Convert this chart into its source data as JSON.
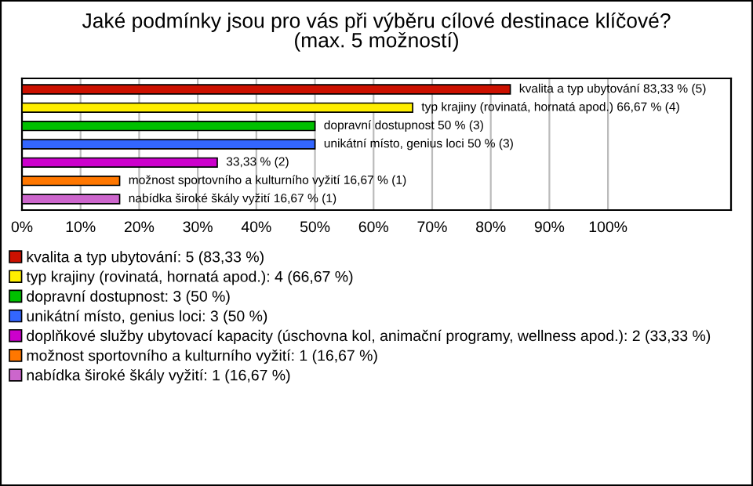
{
  "chart_data": {
    "type": "bar",
    "orientation": "horizontal",
    "title": "Jaké podmínky jsou pro vás při výběru cílové destinace klíčové?\n(max. 5 možností)",
    "categories": [
      null,
      null,
      null,
      null,
      null,
      null,
      null
    ],
    "series": [
      {
        "name": "kvalita a typ ubytování: 5 (83,33 %)",
        "color": "#cc1100",
        "values": [
          83.33,
          null,
          null,
          null,
          null,
          null,
          null
        ],
        "value_labels": [
          "kvalita a typ ubytování 83,33 % (5)",
          null,
          null,
          null,
          null,
          null,
          null
        ]
      },
      {
        "name": "typ krajiny (rovinatá, hornatá apod.): 4 (66,67 %)",
        "color": "#ffee00",
        "values": [
          null,
          66.67,
          null,
          null,
          null,
          null,
          null
        ],
        "value_labels": [
          null,
          "typ krajiny (rovinatá, hornatá apod.) 66,67 % (4)",
          null,
          null,
          null,
          null,
          null
        ]
      },
      {
        "name": "dopravní dostupnost: 3 (50 %)",
        "color": "#00c000",
        "values": [
          null,
          null,
          50,
          null,
          null,
          null,
          null
        ],
        "value_labels": [
          null,
          null,
          "dopravní dostupnost 50 % (3)",
          null,
          null,
          null,
          null
        ]
      },
      {
        "name": "unikátní místo, genius loci: 3 (50 %)",
        "color": "#3366ff",
        "values": [
          null,
          null,
          null,
          50,
          null,
          null,
          null
        ],
        "value_labels": [
          null,
          null,
          null,
          "unikátní místo, genius loci 50 % (3)",
          null,
          null,
          null
        ]
      },
      {
        "name": "doplňkové služby ubytovací kapacity (úschovna kol, animační programy, wellness apod.): 2 (33,33 %)",
        "color": "#cc00cc",
        "values": [
          null,
          null,
          null,
          null,
          33.33,
          null,
          null
        ],
        "value_labels": [
          null,
          null,
          null,
          null,
          "33,33 % (2)",
          null,
          null
        ]
      },
      {
        "name": "možnost sportovního a kulturního vyžití: 1 (16,67 %)",
        "color": "#ff7700",
        "values": [
          null,
          null,
          null,
          null,
          null,
          16.67,
          null
        ],
        "value_labels": [
          null,
          null,
          null,
          null,
          null,
          "možnost sportovního a kulturního vyžití 16,67 % (1)",
          null
        ]
      },
      {
        "name": "nabídka široké škály vyžití: 1 (16,67 %)",
        "color": "#cc66cc",
        "values": [
          null,
          null,
          null,
          null,
          null,
          null,
          16.67
        ],
        "value_labels": [
          null,
          null,
          null,
          null,
          null,
          null,
          "nabídka široké škály vyžití 16,67 % (1)"
        ]
      }
    ],
    "xlim": [
      0,
      121
    ],
    "xticks": [
      {
        "value": 0,
        "label": "0%"
      },
      {
        "value": 10,
        "label": "10%"
      },
      {
        "value": 20,
        "label": "20%"
      },
      {
        "value": 30,
        "label": "30%"
      },
      {
        "value": 40,
        "label": "40%"
      },
      {
        "value": 50,
        "label": "50%"
      },
      {
        "value": 60,
        "label": "60%"
      },
      {
        "value": 70,
        "label": "70%"
      },
      {
        "value": 80,
        "label": "80%"
      },
      {
        "value": 90,
        "label": "90%"
      },
      {
        "value": 100,
        "label": "100%"
      }
    ],
    "tick_labels": "x",
    "grid": "x",
    "legend": "bottom"
  }
}
